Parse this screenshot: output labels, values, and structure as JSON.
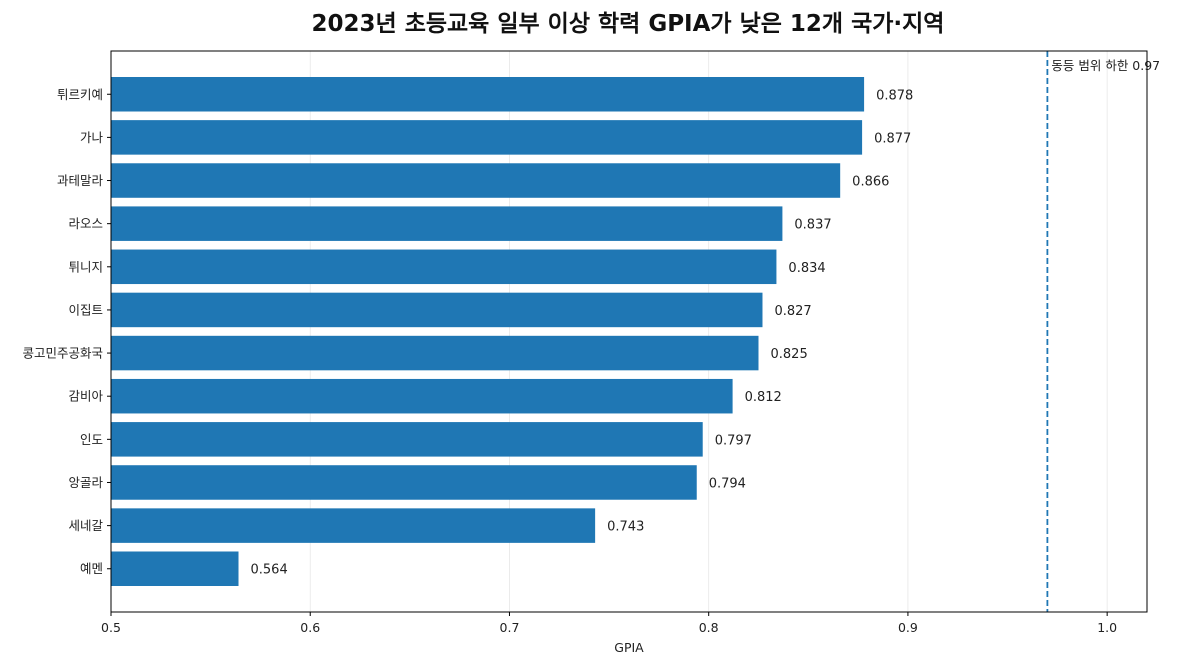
{
  "chart_data": {
    "type": "bar",
    "orientation": "horizontal",
    "title": "2023년 초등교육 일부 이상 학력 GPIA가 낮은 12개 국가·지역",
    "xlabel": "GPIA",
    "ylabel": "",
    "xlim": [
      0.5,
      1.02
    ],
    "xticks": [
      0.5,
      0.6,
      0.7,
      0.8,
      0.9,
      1.0
    ],
    "xtick_labels": [
      "0.5",
      "0.6",
      "0.7",
      "0.8",
      "0.9",
      "1.0"
    ],
    "grid": "x",
    "bar_color": "#1f77b4",
    "categories": [
      "튀르키예",
      "가나",
      "과테말라",
      "라오스",
      "튀니지",
      "이집트",
      "콩고민주공화국",
      "감비아",
      "인도",
      "앙골라",
      "세네갈",
      "예멘"
    ],
    "values": [
      0.878,
      0.877,
      0.866,
      0.837,
      0.834,
      0.827,
      0.825,
      0.812,
      0.797,
      0.794,
      0.743,
      0.564
    ],
    "value_labels": [
      "0.878",
      "0.877",
      "0.866",
      "0.837",
      "0.834",
      "0.827",
      "0.825",
      "0.812",
      "0.797",
      "0.794",
      "0.743",
      "0.564"
    ],
    "reference_line": {
      "value": 0.97,
      "label": "동등 범위 하한 0.97",
      "style": "dashed",
      "color": "#1f77b4"
    }
  }
}
